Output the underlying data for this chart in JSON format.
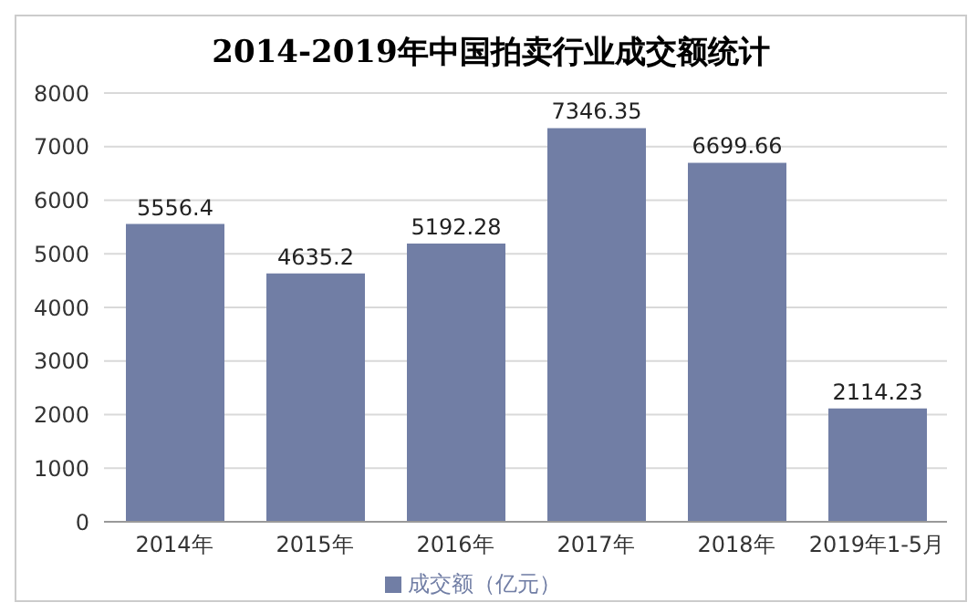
{
  "chart_data": {
    "type": "bar",
    "title": "2014-2019年中国拍卖行业成交额统计",
    "categories": [
      "2014年",
      "2015年",
      "2016年",
      "2017年",
      "2018年",
      "2019年1-5月"
    ],
    "series": [
      {
        "name": "成交额（亿元）",
        "color": "#717ea5",
        "values": [
          5556.4,
          4635.2,
          5192.28,
          7346.35,
          6699.66,
          2114.23
        ]
      }
    ],
    "ylim": [
      0,
      8000
    ],
    "yticks": [
      0,
      1000,
      2000,
      3000,
      4000,
      5000,
      6000,
      7000,
      8000
    ],
    "grid": "y",
    "legend": "bottom",
    "data_labels": true
  }
}
